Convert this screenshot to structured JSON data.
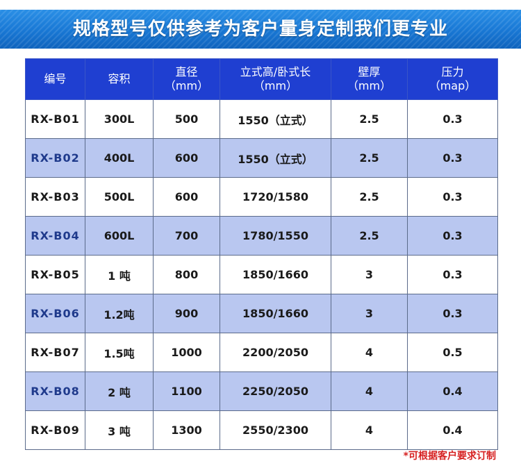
{
  "banner": {
    "title": "规格型号仅供参考为客户量身定制我们更专业"
  },
  "table": {
    "headers": [
      {
        "label": "编号",
        "unit": ""
      },
      {
        "label": "容积",
        "unit": ""
      },
      {
        "label": "直径",
        "unit": "（mm）"
      },
      {
        "label": "立式高/卧式长",
        "unit": "（mm）"
      },
      {
        "label": "壁厚",
        "unit": "（mm）"
      },
      {
        "label": "压力",
        "unit": "（map）"
      }
    ],
    "rows": [
      [
        "RX-B01",
        "300L",
        "500",
        "1550（立式）",
        "2.5",
        "0.3"
      ],
      [
        "RX-B02",
        "400L",
        "600",
        "1550（立式）",
        "2.5",
        "0.3"
      ],
      [
        "RX-B03",
        "500L",
        "600",
        "1720/1580",
        "2.5",
        "0.3"
      ],
      [
        "RX-B04",
        "600L",
        "700",
        "1780/1550",
        "2.5",
        "0.3"
      ],
      [
        "RX-B05",
        "1 吨",
        "800",
        "1850/1660",
        "3",
        "0.3"
      ],
      [
        "RX-B06",
        "1.2吨",
        "900",
        "1850/1660",
        "3",
        "0.3"
      ],
      [
        "RX-B07",
        "1.5吨",
        "1000",
        "2200/2050",
        "4",
        "0.5"
      ],
      [
        "RX-B08",
        "2 吨",
        "1100",
        "2250/2050",
        "4",
        "0.4"
      ],
      [
        "RX-B09",
        "3 吨",
        "1300",
        "2550/2300",
        "4",
        "0.4"
      ]
    ]
  },
  "note": "*可根据客户要求订制",
  "colors": {
    "banner": "#1877d4",
    "header": "#1f3fd1",
    "alt_row": "#b9c7f0",
    "note": "#d62020"
  }
}
